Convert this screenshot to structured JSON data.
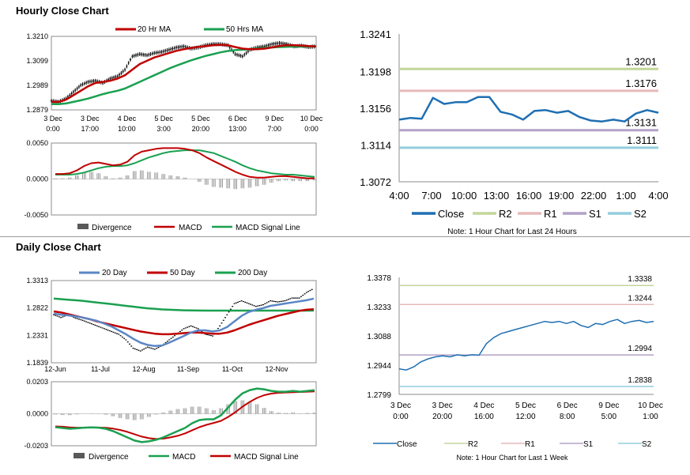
{
  "sections": {
    "hourly_title": "Hourly Close Chart",
    "daily_title": "Daily Close Chart"
  },
  "colors": {
    "red": "#c00000",
    "green": "#1aa050",
    "blue": "#5b86c5",
    "price": "#000000",
    "close": "#1f6fb2",
    "r2": "#c3d69b",
    "r1": "#e6b9b8",
    "s1": "#b3a2c7",
    "s2": "#93cddd",
    "bar": "#7f7f7f",
    "divergence_legend": "#595959"
  },
  "chart_data": [
    {
      "id": "hourly_price",
      "type": "line",
      "title": "",
      "legend": [
        "20 Hr MA",
        "50 Hrs MA"
      ],
      "y_ticks": [
        "1.3210",
        "1.3099",
        "1.2989",
        "1.2879"
      ],
      "ylim": [
        1.2879,
        1.321
      ],
      "x_tick_labels": [
        [
          "3 Dec",
          "0:00"
        ],
        [
          "3 Dec",
          "17:00"
        ],
        [
          "4 Dec",
          "10:00"
        ],
        [
          "5 Dec",
          "3:00"
        ],
        [
          "5 Dec",
          "20:00"
        ],
        [
          "6 Dec",
          "13:00"
        ],
        [
          "9 Dec",
          "7:00"
        ],
        [
          "10 Dec",
          "0:00"
        ]
      ],
      "series": [
        {
          "name": "Price",
          "values": [
            1.292,
            1.2915,
            1.293,
            1.296,
            1.299,
            1.3005,
            1.301,
            1.3,
            1.302,
            1.303,
            1.306,
            1.312,
            1.313,
            1.3125,
            1.3135,
            1.314,
            1.315,
            1.316,
            1.3165,
            1.3155,
            1.316,
            1.317,
            1.3175,
            1.3175,
            1.317,
            1.313,
            1.312,
            1.315,
            1.316,
            1.3165,
            1.3175,
            1.318,
            1.3175,
            1.3165,
            1.3168,
            1.3162,
            1.3165
          ]
        },
        {
          "name": "20 Hr MA",
          "values": [
            1.2915,
            1.2915,
            1.2925,
            1.2945,
            1.2965,
            1.2985,
            1.3,
            1.3005,
            1.301,
            1.302,
            1.3035,
            1.306,
            1.3085,
            1.31,
            1.3115,
            1.3125,
            1.3135,
            1.3145,
            1.3152,
            1.3158,
            1.3163,
            1.3166,
            1.317,
            1.3172,
            1.317,
            1.3162,
            1.3155,
            1.3152,
            1.3152,
            1.3155,
            1.316,
            1.3167,
            1.317,
            1.317,
            1.3168,
            1.3166,
            1.3165
          ]
        },
        {
          "name": "50 Hrs MA",
          "values": [
            1.2905,
            1.2905,
            1.2908,
            1.2915,
            1.2922,
            1.293,
            1.294,
            1.295,
            1.2958,
            1.2965,
            1.2975,
            1.299,
            1.3005,
            1.302,
            1.3035,
            1.305,
            1.3065,
            1.3078,
            1.309,
            1.3102,
            1.3112,
            1.3122,
            1.313,
            1.3138,
            1.3144,
            1.3148,
            1.315,
            1.3152,
            1.3155,
            1.3158,
            1.316,
            1.3162,
            1.3163,
            1.3164,
            1.3164,
            1.3164,
            1.3164
          ]
        }
      ]
    },
    {
      "id": "hourly_macd",
      "type": "line",
      "legend": [
        "Divergence",
        "MACD",
        "MACD Signal Line"
      ],
      "y_ticks": [
        "0.0050",
        "0.0000",
        "-0.0050"
      ],
      "ylim": [
        -0.005,
        0.005
      ],
      "series": [
        {
          "name": "MACD",
          "values": [
            0.0007,
            0.0007,
            0.0008,
            0.0012,
            0.0018,
            0.0022,
            0.0023,
            0.0021,
            0.0019,
            0.002,
            0.0024,
            0.0033,
            0.0038,
            0.004,
            0.0042,
            0.0043,
            0.0043,
            0.0043,
            0.0042,
            0.004,
            0.0036,
            0.003,
            0.0025,
            0.002,
            0.0015,
            0.001,
            0.0006,
            0.0003,
            0.0002,
            0.0002,
            0.0003,
            0.0004,
            0.0004,
            0.0003,
            0.0002,
            0.0001,
            0.0001
          ]
        },
        {
          "name": "MACD Signal Line",
          "values": [
            0.0006,
            0.0006,
            0.0006,
            0.0007,
            0.0009,
            0.0012,
            0.0015,
            0.0017,
            0.0018,
            0.0018,
            0.0019,
            0.0022,
            0.0026,
            0.003,
            0.0033,
            0.0036,
            0.0038,
            0.0039,
            0.004,
            0.004,
            0.004,
            0.0038,
            0.0036,
            0.0032,
            0.0028,
            0.0024,
            0.0019,
            0.0015,
            0.0012,
            0.001,
            0.0008,
            0.0007,
            0.0006,
            0.0006,
            0.0005,
            0.0004,
            0.0003
          ]
        },
        {
          "name": "Divergence",
          "values": [
            0.0001,
            0.0001,
            0.0002,
            0.0005,
            0.0009,
            0.001,
            0.0008,
            0.0004,
            0.0001,
            0.0002,
            0.0005,
            0.0011,
            0.0012,
            0.001,
            0.0009,
            0.0007,
            0.0005,
            0.0004,
            0.0002,
            0.0,
            -0.0004,
            -0.0008,
            -0.0011,
            -0.0012,
            -0.0013,
            -0.0014,
            -0.0013,
            -0.0012,
            -0.001,
            -0.0008,
            -0.0005,
            -0.0003,
            -0.0002,
            -0.0003,
            -0.0003,
            -0.0003,
            -0.0002
          ]
        }
      ]
    },
    {
      "id": "hourly_levels",
      "type": "line",
      "y_ticks": [
        "1.3241",
        "1.3198",
        "1.3156",
        "1.3114",
        "1.3072"
      ],
      "ylim": [
        1.3072,
        1.3241
      ],
      "x_tick_labels": [
        "4:00",
        "7:00",
        "10:00",
        "13:00",
        "16:00",
        "19:00",
        "22:00",
        "1:00",
        "4:00"
      ],
      "levels": [
        {
          "name": "R2",
          "value": 1.3201,
          "label": "1.3201"
        },
        {
          "name": "R1",
          "value": 1.3176,
          "label": "1.3176"
        },
        {
          "name": "S1",
          "value": 1.3131,
          "label": "1.3131"
        },
        {
          "name": "S2",
          "value": 1.3111,
          "label": "1.3111"
        }
      ],
      "series": [
        {
          "name": "Close",
          "values": [
            1.3143,
            1.3145,
            1.3144,
            1.3168,
            1.3161,
            1.3163,
            1.3163,
            1.3169,
            1.3169,
            1.3152,
            1.3149,
            1.3143,
            1.3153,
            1.3154,
            1.3151,
            1.3153,
            1.3146,
            1.3142,
            1.3141,
            1.3143,
            1.3141,
            1.315,
            1.3154,
            1.3151
          ]
        }
      ],
      "legend": [
        "Close",
        "R2",
        "R1",
        "S1",
        "S2"
      ],
      "note": "Note: 1 Hour Chart for Last 24 Hours"
    },
    {
      "id": "daily_price",
      "type": "line",
      "legend": [
        "20 Day",
        "50 Day",
        "200 Day"
      ],
      "y_ticks": [
        "1.3313",
        "1.2822",
        "1.2331",
        "1.1839"
      ],
      "ylim": [
        1.1839,
        1.3313
      ],
      "x_tick_labels": [
        "12-Jun",
        "11-Jul",
        "12-Aug",
        "11-Sep",
        "11-Oct",
        "12-Nov"
      ],
      "series": [
        {
          "name": "Price",
          "values": [
            1.27,
            1.265,
            1.27,
            1.264,
            1.26,
            1.255,
            1.25,
            1.245,
            1.24,
            1.235,
            1.225,
            1.21,
            1.205,
            1.212,
            1.208,
            1.215,
            1.225,
            1.235,
            1.245,
            1.25,
            1.245,
            1.235,
            1.232,
            1.25,
            1.27,
            1.29,
            1.295,
            1.29,
            1.285,
            1.288,
            1.295,
            1.293,
            1.295,
            1.3,
            1.3,
            1.31,
            1.317
          ]
        },
        {
          "name": "20 Day",
          "values": [
            1.272,
            1.27,
            1.269,
            1.267,
            1.265,
            1.262,
            1.259,
            1.254,
            1.249,
            1.242,
            1.235,
            1.227,
            1.22,
            1.216,
            1.214,
            1.215,
            1.22,
            1.226,
            1.232,
            1.238,
            1.242,
            1.242,
            1.24,
            1.242,
            1.248,
            1.258,
            1.268,
            1.275,
            1.279,
            1.282,
            1.286,
            1.288,
            1.29,
            1.292,
            1.294,
            1.296,
            1.299
          ]
        },
        {
          "name": "50 Day",
          "values": [
            1.276,
            1.274,
            1.271,
            1.268,
            1.265,
            1.262,
            1.258,
            1.255,
            1.252,
            1.249,
            1.246,
            1.243,
            1.24,
            1.238,
            1.236,
            1.235,
            1.235,
            1.236,
            1.237,
            1.238,
            1.238,
            1.237,
            1.236,
            1.236,
            1.238,
            1.242,
            1.247,
            1.252,
            1.256,
            1.26,
            1.264,
            1.268,
            1.271,
            1.274,
            1.277,
            1.279,
            1.28
          ]
        },
        {
          "name": "200 Day",
          "values": [
            1.299,
            1.298,
            1.297,
            1.296,
            1.295,
            1.2935,
            1.292,
            1.2905,
            1.289,
            1.2875,
            1.286,
            1.2845,
            1.283,
            1.2815,
            1.2805,
            1.2795,
            1.279,
            1.2785,
            1.278,
            1.2778,
            1.2776,
            1.2775,
            1.2775,
            1.2775,
            1.2775,
            1.2775,
            1.2775,
            1.2775,
            1.2775,
            1.2775,
            1.2775,
            1.2775,
            1.2775,
            1.2775,
            1.2775,
            1.2775,
            1.2775
          ]
        }
      ]
    },
    {
      "id": "daily_macd",
      "type": "line",
      "legend": [
        "Divergence",
        "MACD",
        "MACD Signal Line"
      ],
      "y_ticks": [
        "0.0203",
        "0.0000",
        "-0.0203"
      ],
      "ylim": [
        -0.0203,
        0.0203
      ],
      "series": [
        {
          "name": "MACD",
          "values": [
            -0.0085,
            -0.009,
            -0.0095,
            -0.0092,
            -0.0088,
            -0.0086,
            -0.0088,
            -0.0095,
            -0.011,
            -0.013,
            -0.015,
            -0.017,
            -0.018,
            -0.0175,
            -0.0165,
            -0.015,
            -0.013,
            -0.011,
            -0.009,
            -0.006,
            -0.004,
            -0.0035,
            -0.0035,
            -0.001,
            0.004,
            0.009,
            0.013,
            0.015,
            0.016,
            0.0155,
            0.0145,
            0.014,
            0.014,
            0.0145,
            0.014,
            0.0145,
            0.015
          ]
        },
        {
          "name": "MACD Signal Line",
          "values": [
            -0.008,
            -0.0082,
            -0.0086,
            -0.0088,
            -0.0088,
            -0.0087,
            -0.0087,
            -0.0089,
            -0.0094,
            -0.0103,
            -0.0115,
            -0.013,
            -0.0145,
            -0.0155,
            -0.016,
            -0.0158,
            -0.015,
            -0.014,
            -0.0125,
            -0.0105,
            -0.0085,
            -0.007,
            -0.0058,
            -0.0045,
            -0.002,
            0.001,
            0.0045,
            0.0075,
            0.01,
            0.0118,
            0.0128,
            0.0133,
            0.0135,
            0.0137,
            0.0138,
            0.014,
            0.0142
          ]
        },
        {
          "name": "Divergence",
          "values": [
            -0.0005,
            -0.0008,
            -0.0009,
            -0.0004,
            0.0,
            0.0001,
            -0.0001,
            -0.0006,
            -0.0016,
            -0.0027,
            -0.0035,
            -0.004,
            -0.0035,
            -0.002,
            -0.0005,
            0.0008,
            0.002,
            0.003,
            0.0035,
            0.0045,
            0.0045,
            0.0035,
            0.0023,
            0.0035,
            0.006,
            0.008,
            0.0085,
            0.0075,
            0.006,
            0.0037,
            0.0017,
            0.0007,
            0.0005,
            0.0008,
            0.0002,
            0.0005,
            0.0008
          ]
        }
      ]
    },
    {
      "id": "daily_levels",
      "type": "line",
      "y_ticks": [
        "1.3378",
        "1.3233",
        "1.3088",
        "1.2944",
        "1.2799"
      ],
      "ylim": [
        1.2799,
        1.3378
      ],
      "x_tick_labels": [
        [
          "3 Dec",
          "0:00"
        ],
        [
          "3 Dec",
          "20:00"
        ],
        [
          "4 Dec",
          "16:00"
        ],
        [
          "5 Dec",
          "12:00"
        ],
        [
          "6 Dec",
          "8:00"
        ],
        [
          "9 Dec",
          "5:00"
        ],
        [
          "10 Dec",
          "1:00"
        ]
      ],
      "levels": [
        {
          "name": "R2",
          "value": 1.3338,
          "label": "1.3338"
        },
        {
          "name": "R1",
          "value": 1.3244,
          "label": "1.3244"
        },
        {
          "name": "S1",
          "value": 1.2994,
          "label": "1.2994"
        },
        {
          "name": "S2",
          "value": 1.2838,
          "label": "1.2838"
        }
      ],
      "series": [
        {
          "name": "Close",
          "values": [
            1.2925,
            1.292,
            1.2935,
            1.296,
            1.2975,
            1.2985,
            1.299,
            1.2985,
            1.2995,
            1.299,
            1.2995,
            1.2993,
            1.305,
            1.308,
            1.31,
            1.311,
            1.312,
            1.313,
            1.314,
            1.315,
            1.316,
            1.3155,
            1.316,
            1.315,
            1.316,
            1.314,
            1.313,
            1.315,
            1.3145,
            1.316,
            1.317,
            1.315,
            1.316,
            1.3165,
            1.3155,
            1.316
          ]
        }
      ],
      "legend": [
        "Close",
        "R2",
        "R1",
        "S1",
        "S2"
      ],
      "note": "Note: 1 Hour Chart for Last 1 Week"
    }
  ]
}
